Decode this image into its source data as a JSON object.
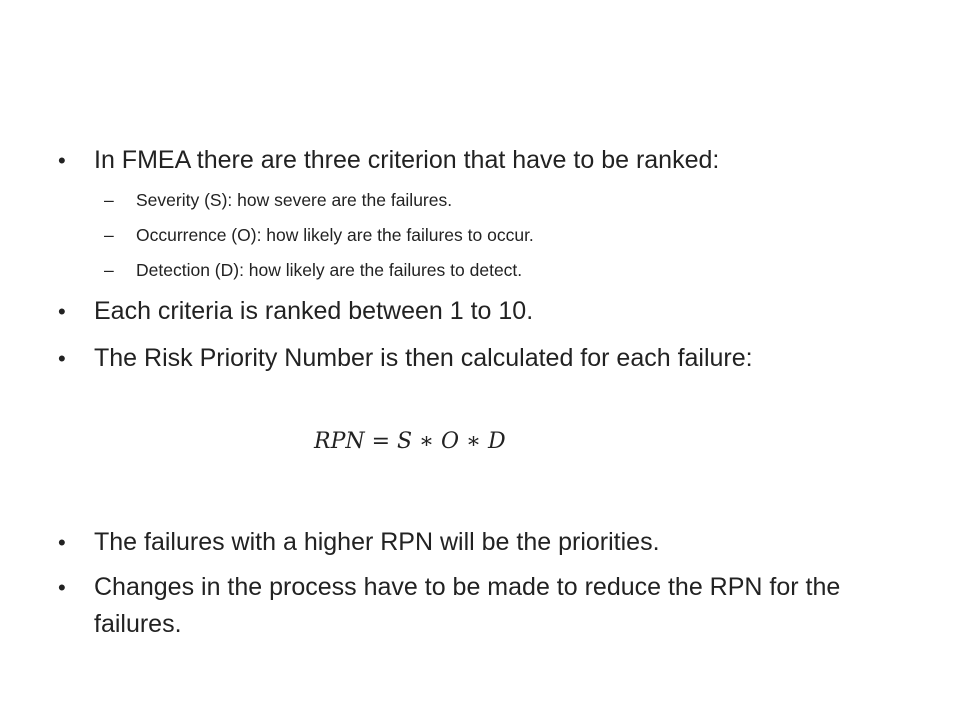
{
  "bullets": [
    {
      "text": "In FMEA there are three criterion that have to be ranked:",
      "sub": [
        "Severity (S): how severe are the failures.",
        "Occurrence (O): how likely are the failures to occur.",
        "Detection (D): how likely are the failures to detect."
      ]
    },
    {
      "text": "Each criteria is ranked between 1 to 10."
    },
    {
      "text": "The Risk Priority Number is then calculated for each failure:"
    },
    {
      "text": "The failures with a higher RPN will be the priorities."
    },
    {
      "text": "Changes in the process have to be made to reduce the RPN for the failures."
    }
  ],
  "formula": "RPN = S ∗ O ∗ D",
  "bullet_glyph": "•",
  "dash_glyph": "–"
}
